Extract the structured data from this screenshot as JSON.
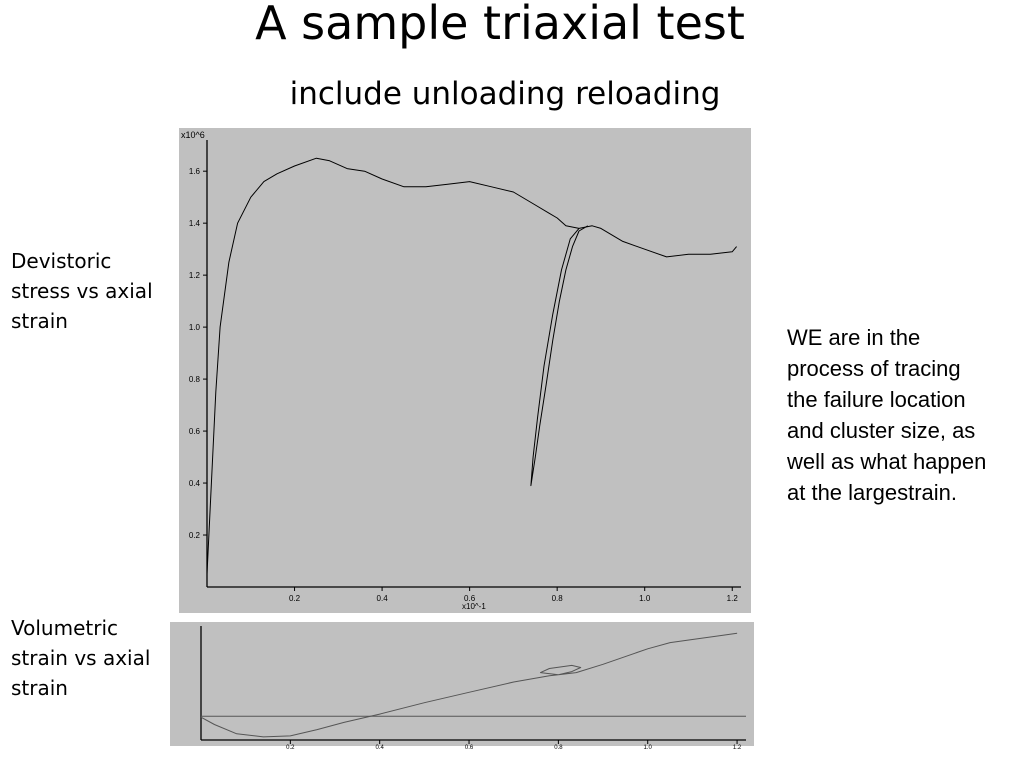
{
  "slide": {
    "title": "A sample triaxial test",
    "subtitle": "include unloading reloading",
    "label_top": "Devistoric stress vs axial strain",
    "label_bottom": "Volumetric strain vs axial strain",
    "note": "WE are in the process of tracing the failure location and cluster size, as well as what happen at the largestrain."
  },
  "chart_data": [
    {
      "type": "line",
      "y_multiplier_label": "x10^6",
      "x_multiplier_label": "x10^-1",
      "xlim": [
        0,
        1.22
      ],
      "ylim": [
        0,
        1.72
      ],
      "x_ticks": [
        0.2,
        0.4,
        0.6,
        0.8,
        1.0,
        1.2
      ],
      "x_tick_labels": [
        "0.2",
        "0.4",
        "0.6",
        "0.8",
        "1.0",
        "1.2"
      ],
      "y_ticks": [
        0.2,
        0.4,
        0.6,
        0.8,
        1.0,
        1.2,
        1.4,
        1.6
      ],
      "y_tick_labels": [
        "0.2",
        "0.4",
        "0.6",
        "0.8",
        "1.0",
        "1.2",
        "1.4",
        "1.6"
      ],
      "grid": false,
      "series": [
        {
          "color": "#000000",
          "x": [
            0.0,
            0.01,
            0.02,
            0.03,
            0.05,
            0.07,
            0.1,
            0.13,
            0.16,
            0.2,
            0.25,
            0.28,
            0.32,
            0.36,
            0.4,
            0.45,
            0.5,
            0.55,
            0.6,
            0.65,
            0.7,
            0.75,
            0.78,
            0.8,
            0.82,
            0.85,
            0.88,
            0.9,
            0.95,
            1.0,
            1.05,
            1.1,
            1.15,
            1.2,
            1.21
          ],
          "y": [
            0.05,
            0.4,
            0.75,
            1.0,
            1.25,
            1.4,
            1.5,
            1.56,
            1.59,
            1.62,
            1.65,
            1.64,
            1.61,
            1.6,
            1.57,
            1.54,
            1.54,
            1.55,
            1.56,
            1.54,
            1.52,
            1.47,
            1.44,
            1.42,
            1.39,
            1.38,
            1.39,
            1.38,
            1.33,
            1.3,
            1.27,
            1.28,
            1.28,
            1.29,
            1.31
          ]
        },
        {
          "color": "#000000",
          "x": [
            0.85,
            0.83,
            0.81,
            0.79,
            0.77,
            0.755,
            0.745,
            0.74,
            0.75,
            0.76,
            0.775,
            0.79,
            0.805,
            0.82,
            0.835,
            0.85,
            0.87
          ],
          "y": [
            1.38,
            1.34,
            1.22,
            1.05,
            0.85,
            0.65,
            0.5,
            0.39,
            0.5,
            0.62,
            0.78,
            0.95,
            1.1,
            1.22,
            1.31,
            1.37,
            1.39
          ]
        }
      ]
    },
    {
      "type": "line",
      "xlim": [
        0,
        1.22
      ],
      "ylim": [
        -0.1,
        1.0
      ],
      "x_ticks": [
        0.2,
        0.4,
        0.6,
        0.8,
        1.0,
        1.2
      ],
      "x_tick_labels": [
        "0.2",
        "0.4",
        "0.6",
        "0.8",
        "1.0",
        "1.2"
      ],
      "grid": false,
      "series": [
        {
          "color": "#555555",
          "x": [
            0.0,
            0.03,
            0.08,
            0.14,
            0.2,
            0.26,
            0.32,
            0.4,
            0.5,
            0.6,
            0.7,
            0.78,
            0.8,
            0.83,
            0.85,
            0.83,
            0.78,
            0.76,
            0.8,
            0.84,
            0.9,
            1.0,
            1.05,
            1.1,
            1.2
          ],
          "y": [
            0.12,
            0.05,
            -0.04,
            -0.07,
            -0.06,
            0.0,
            0.07,
            0.15,
            0.26,
            0.36,
            0.46,
            0.52,
            0.53,
            0.56,
            0.6,
            0.62,
            0.59,
            0.55,
            0.53,
            0.55,
            0.63,
            0.78,
            0.84,
            0.87,
            0.93
          ]
        },
        {
          "color": "#555555",
          "x": [
            0.0,
            1.22
          ],
          "y": [
            0.13,
            0.13
          ]
        }
      ]
    }
  ]
}
